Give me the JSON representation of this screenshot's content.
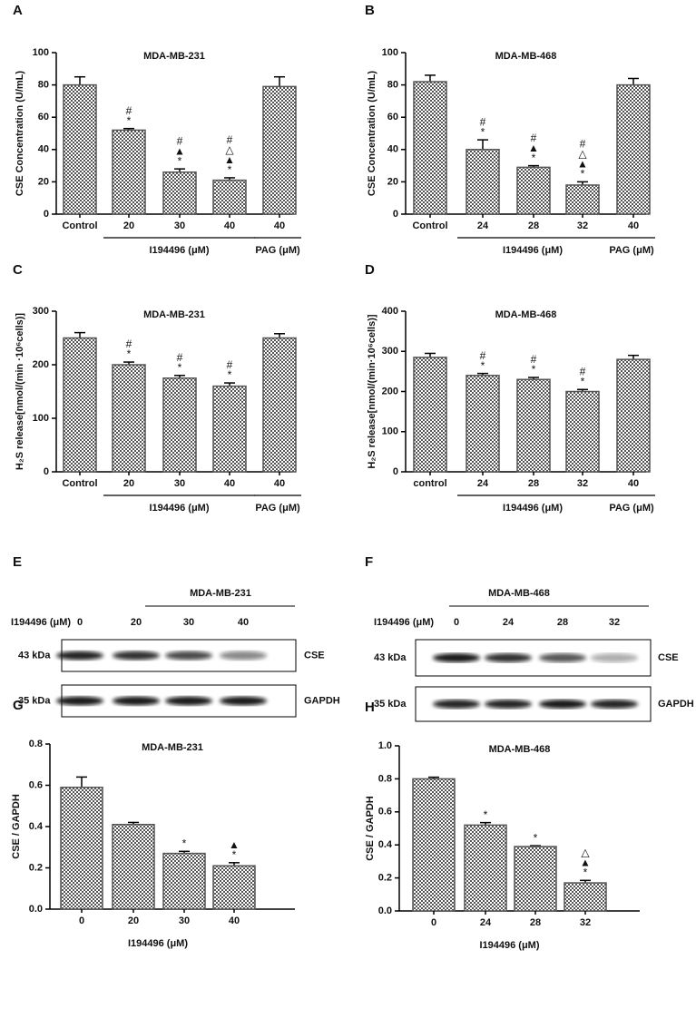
{
  "chart_data": [
    {
      "type": "bar",
      "panel": "A",
      "title": "MDA-MB-231",
      "ylabel": "CSE Concentration (U/mL)",
      "categories": [
        "Control",
        "20",
        "30",
        "40",
        "40"
      ],
      "values": [
        80,
        52,
        26,
        21,
        79
      ],
      "errors": [
        5,
        1,
        2,
        1.5,
        6
      ],
      "annotations": [
        null,
        [
          "#",
          "*"
        ],
        [
          "#",
          "▲",
          "*"
        ],
        [
          "#",
          "△",
          "▲",
          "*"
        ],
        null
      ],
      "group_labels": [
        "I194496 (μM)",
        "PAG (μM)"
      ],
      "color": "#555555",
      "ylim": [
        0,
        100
      ],
      "yticks": [
        0,
        20,
        40,
        60,
        80,
        100
      ]
    },
    {
      "type": "bar",
      "panel": "B",
      "title": "MDA-MB-468",
      "ylabel": "CSE Concentration (U/mL)",
      "categories": [
        "Control",
        "24",
        "28",
        "32",
        "40"
      ],
      "values": [
        82,
        40,
        29,
        18,
        80
      ],
      "errors": [
        4,
        6,
        1,
        2,
        4
      ],
      "annotations": [
        null,
        [
          "#",
          "*"
        ],
        [
          "#",
          "▲",
          "*"
        ],
        [
          "#",
          "△",
          "▲",
          "*"
        ],
        null
      ],
      "group_labels": [
        "I194496 (μM)",
        "PAG (μM)"
      ],
      "color": "#555555",
      "ylim": [
        0,
        100
      ],
      "yticks": [
        0,
        20,
        40,
        60,
        80,
        100
      ]
    },
    {
      "type": "bar",
      "panel": "C",
      "title": "MDA-MB-231",
      "ylabel": "H₂S release[nmol/(min ·10⁶cells)]",
      "categories": [
        "Control",
        "20",
        "30",
        "40",
        "40"
      ],
      "values": [
        250,
        200,
        175,
        160,
        250
      ],
      "errors": [
        10,
        5,
        5,
        6,
        8
      ],
      "annotations": [
        null,
        [
          "#",
          "*"
        ],
        [
          "#",
          "*"
        ],
        [
          "#",
          "*"
        ],
        null
      ],
      "group_labels": [
        "I194496 (μM)",
        "PAG (μM)"
      ],
      "color": "#555555",
      "ylim": [
        0,
        300
      ],
      "yticks": [
        0,
        100,
        200,
        300
      ]
    },
    {
      "type": "bar",
      "panel": "D",
      "title": "MDA-MB-468",
      "ylabel": "H₂S release[nmol/(min·10⁶cells)]",
      "categories": [
        "control",
        "24",
        "28",
        "32",
        "40"
      ],
      "values": [
        285,
        240,
        230,
        200,
        280
      ],
      "errors": [
        10,
        5,
        5,
        5,
        10
      ],
      "annotations": [
        null,
        [
          "#",
          "*"
        ],
        [
          "#",
          "*"
        ],
        [
          "#",
          "*"
        ],
        null
      ],
      "group_labels": [
        "I194496 (μM)",
        "PAG (μM)"
      ],
      "color": "#555555",
      "ylim": [
        0,
        400
      ],
      "yticks": [
        0,
        100,
        200,
        300,
        400
      ]
    },
    {
      "type": "bar",
      "panel": "G",
      "title": "MDA-MB-231",
      "ylabel": "CSE / GAPDH",
      "xlabel": "I194496 (μM)",
      "categories": [
        "0",
        "20",
        "30",
        "40"
      ],
      "values": [
        0.59,
        0.41,
        0.27,
        0.21
      ],
      "errors": [
        0.05,
        0.01,
        0.01,
        0.015
      ],
      "annotations": [
        null,
        null,
        [
          "*"
        ],
        [
          "▲",
          "*"
        ]
      ],
      "color": "#555555",
      "ylim": [
        0,
        0.8
      ],
      "yticks": [
        {
          "value": 0,
          "label": "0.0"
        },
        0.2,
        0.4,
        0.6,
        0.8
      ]
    },
    {
      "type": "bar",
      "panel": "H",
      "title": "MDA-MB-468",
      "ylabel": "CSE / GAPDH",
      "xlabel": "I194496 (μM)",
      "categories": [
        "0",
        "24",
        "28",
        "32"
      ],
      "values": [
        0.8,
        0.52,
        0.39,
        0.17
      ],
      "errors": [
        0.01,
        0.015,
        0.005,
        0.015
      ],
      "annotations": [
        null,
        [
          "*"
        ],
        [
          "*"
        ],
        [
          "△",
          "▲",
          "*"
        ]
      ],
      "color": "#555555",
      "ylim": [
        0,
        1.0
      ],
      "yticks": [
        {
          "value": 0,
          "label": "0.0"
        },
        0.2,
        0.4,
        0.6,
        0.8,
        {
          "value": 1.0,
          "label": "1.0"
        }
      ]
    }
  ],
  "blots": [
    {
      "panel": "E",
      "title": "MDA-MB-231",
      "row_label": "I194496 (μM)",
      "lanes": [
        "0",
        "20",
        "30",
        "40"
      ],
      "bands": [
        {
          "size": "43 kDa",
          "name": "CSE"
        },
        {
          "size": "35 kDa",
          "name": "GAPDH"
        }
      ]
    },
    {
      "panel": "F",
      "title": "MDA-MB-468",
      "row_label": "I194496 (μM)",
      "lanes": [
        "0",
        "24",
        "28",
        "32"
      ],
      "bands": [
        {
          "size": "43 kDa",
          "name": "CSE"
        },
        {
          "size": "35 kDa",
          "name": "GAPDH"
        }
      ]
    }
  ]
}
